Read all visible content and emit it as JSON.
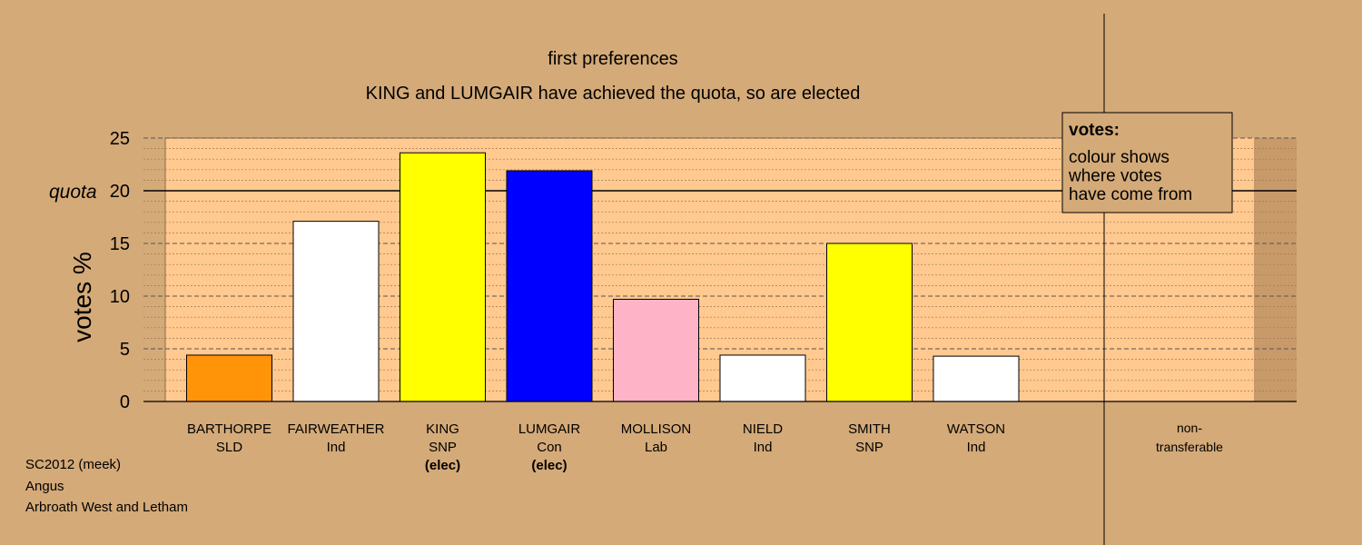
{
  "chart_data": {
    "type": "bar",
    "title": "first preferences",
    "subtitle": "KING and LUMGAIR have achieved the quota, so are elected",
    "ylabel": "votes %",
    "ylim": [
      0,
      25
    ],
    "yticks": [
      0,
      5,
      10,
      15,
      20,
      25
    ],
    "quota": {
      "label": "quota",
      "value": 20
    },
    "grid": true,
    "categories": [
      {
        "name": "BARTHORPE",
        "party": "SLD",
        "status": "",
        "value": 4.4,
        "color": "#ff9408"
      },
      {
        "name": "FAIRWEATHER",
        "party": "Ind",
        "status": "",
        "value": 17.1,
        "color": "#ffffff"
      },
      {
        "name": "KING",
        "party": "SNP",
        "status": "(elec)",
        "value": 23.6,
        "color": "#ffff00"
      },
      {
        "name": "LUMGAIR",
        "party": "Con",
        "status": "(elec)",
        "value": 21.9,
        "color": "#0000ff"
      },
      {
        "name": "MOLLISON",
        "party": "Lab",
        "status": "",
        "value": 9.7,
        "color": "#ffb3c6"
      },
      {
        "name": "NIELD",
        "party": "Ind",
        "status": "",
        "value": 4.4,
        "color": "#ffffff"
      },
      {
        "name": "SMITH",
        "party": "SNP",
        "status": "",
        "value": 15.0,
        "color": "#ffff00"
      },
      {
        "name": "WATSON",
        "party": "Ind",
        "status": "",
        "value": 4.3,
        "color": "#ffffff"
      }
    ],
    "nontransferable": {
      "line1": "non-",
      "line2": "transferable",
      "value": 0
    },
    "legend": {
      "placement": "top-right",
      "title": "votes:",
      "lines": [
        "colour shows",
        "where votes",
        "have come from"
      ]
    }
  },
  "footer": {
    "line1": "SC2012 (meek)",
    "line2": "Angus",
    "line3": "Arbroath West and Letham"
  },
  "colors": {
    "background": "#d4aa78",
    "plot_area": "#ffc98f",
    "plot_edge": "#c89a6a"
  }
}
